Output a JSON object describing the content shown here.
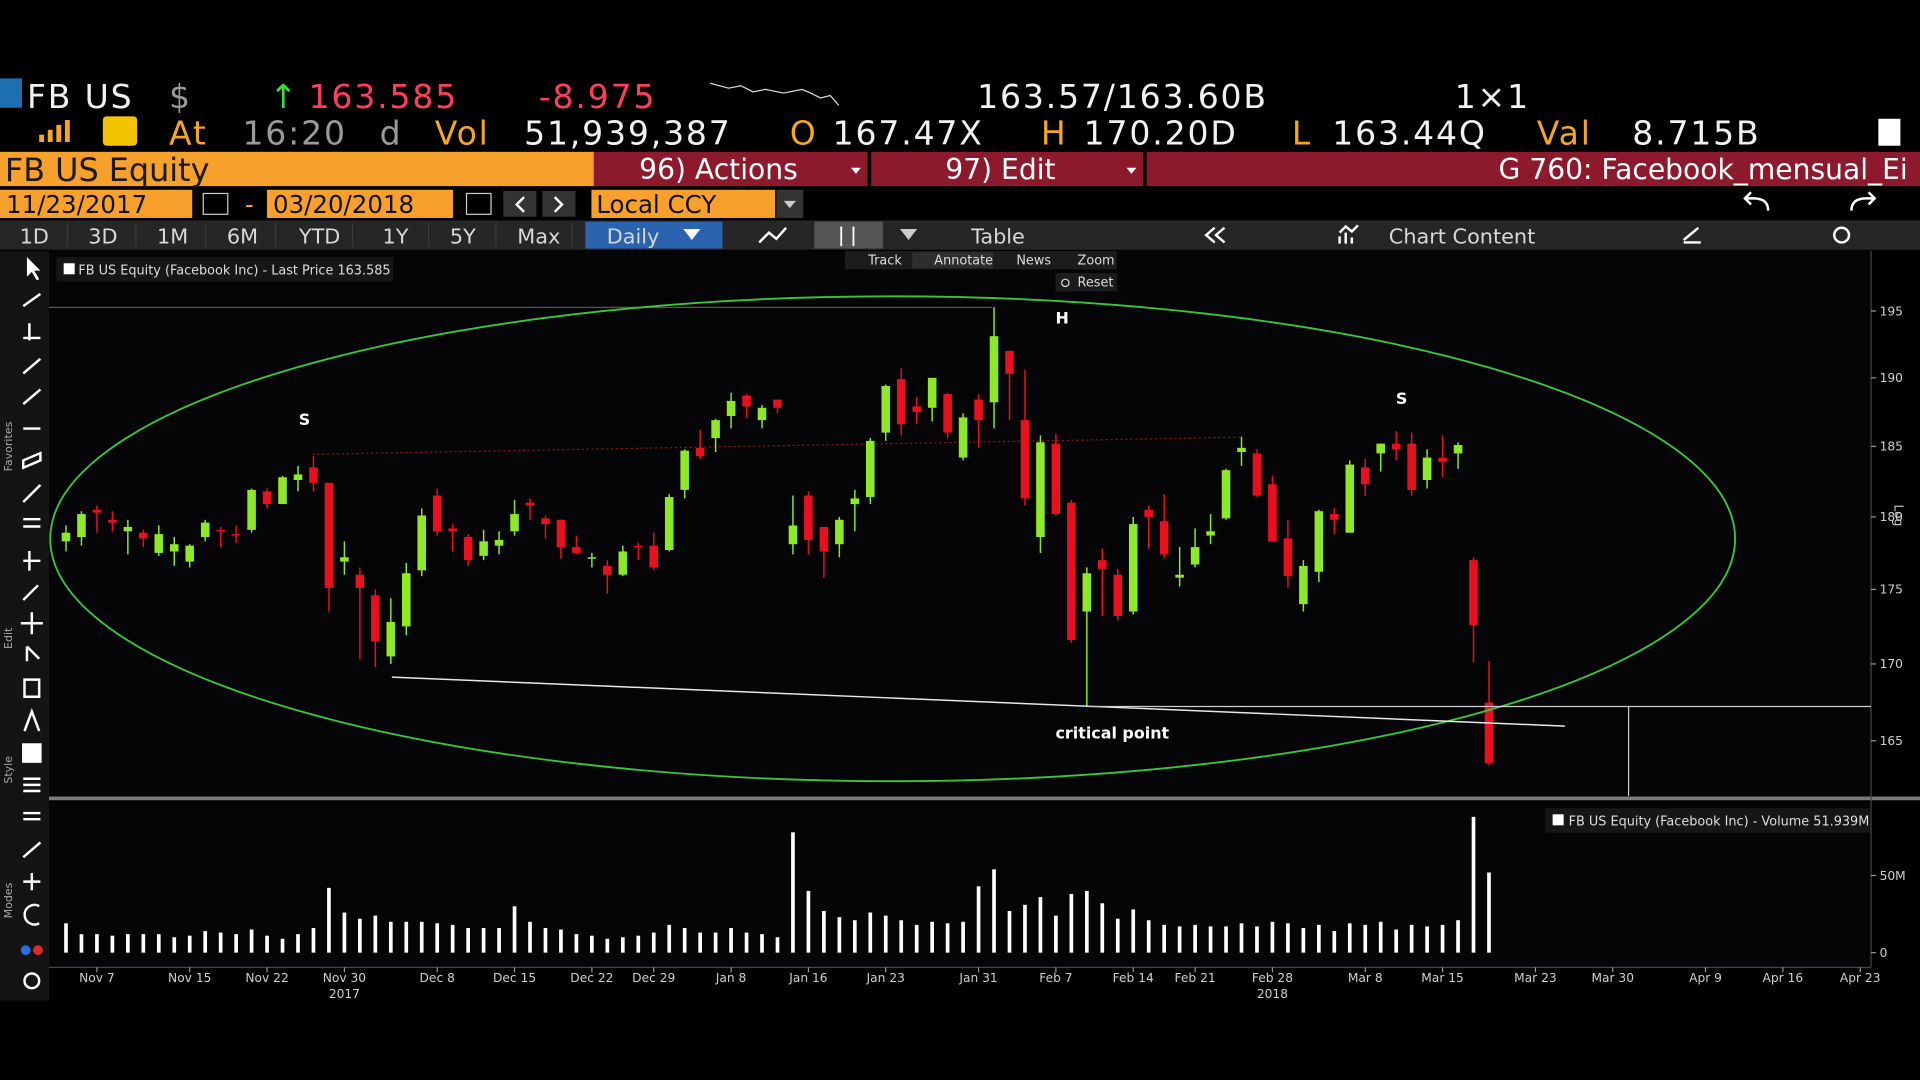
{
  "header": {
    "ticker": "FB US",
    "currency": "$",
    "arrow": "↑",
    "last": "163.585",
    "change": "-8.975",
    "bid_ask": "163.57/163.60B",
    "size": "1×1",
    "at": "At",
    "time": "16:20",
    "d": "d",
    "vol_label": "Vol",
    "volume": "51,939,387",
    "open_label": "O",
    "open": "167.47X",
    "high_label": "H",
    "high": "170.20D",
    "low_label": "L",
    "low": "163.44Q",
    "val_label": "Val",
    "value": "8.715B"
  },
  "menu": {
    "security": "FB US Equity",
    "actions": "96) Actions",
    "edit": "97) Edit",
    "chart_name": "G 760: Facebook_mensual_Ei"
  },
  "range": {
    "start": "11/23/2017",
    "separator": "-",
    "end": "03/20/2018",
    "currency": "Local CCY"
  },
  "tabs": [
    "1D",
    "3D",
    "1M",
    "6M",
    "YTD",
    "1Y",
    "5Y",
    "Max"
  ],
  "period": "Daily",
  "table": "Table",
  "chart_content": "Chart Content",
  "chart_tools": [
    "Track",
    "Annotate",
    "News",
    "Zoom"
  ],
  "reset": "Reset",
  "side_labels": [
    "Favorites",
    "Edit",
    "Style",
    "Modes"
  ],
  "annotations": [
    "S",
    "H",
    "S",
    "critical point"
  ],
  "chart_data": [
    {
      "type": "candlestick",
      "legend": "FB US Equity (Facebook Inc) - Last Price 163.585",
      "axis_label": "Log",
      "x": [
        0,
        1,
        2,
        3,
        4,
        5,
        6,
        7,
        8,
        9,
        10,
        11,
        12,
        13,
        14,
        15,
        16,
        17,
        18,
        19,
        20,
        21,
        22,
        23,
        24,
        25,
        26,
        27,
        28,
        29,
        30,
        31,
        32,
        33,
        34,
        35,
        36,
        37,
        38,
        39,
        40,
        41,
        42,
        43,
        44,
        45,
        46,
        47,
        48,
        49,
        50,
        51,
        52,
        53,
        54,
        55,
        56,
        57,
        58,
        59,
        60,
        61,
        62,
        63,
        64,
        65,
        66,
        67,
        68,
        69,
        70,
        71,
        72,
        73,
        74,
        75,
        76,
        77,
        78,
        79,
        80,
        81,
        82,
        83,
        84,
        85,
        86,
        87,
        88,
        89,
        90,
        91,
        92
      ],
      "open": [
        178.3,
        178.6,
        180.5,
        179.8,
        179.0,
        178.9,
        177.5,
        177.6,
        176.9,
        178.6,
        179.1,
        178.8,
        179.1,
        181.8,
        180.9,
        182.6,
        183.5,
        182.4,
        176.9,
        176.0,
        174.6,
        170.5,
        172.5,
        176.3,
        181.5,
        179.2,
        178.6,
        177.3,
        178.0,
        179.0,
        181.0,
        179.9,
        179.8,
        177.9,
        177.1,
        176.6,
        176.0,
        178.0,
        178.0,
        177.7,
        181.9,
        184.9,
        185.6,
        187.2,
        188.7,
        186.9,
        188.4,
        178.1,
        181.5,
        179.3,
        178.1,
        180.9,
        181.4,
        186.0,
        189.9,
        187.9,
        187.8,
        188.8,
        184.2,
        188.4,
        188.2,
        192.0,
        186.9,
        178.6,
        185.2,
        181.0,
        173.5,
        177.0,
        176.0,
        173.5,
        180.5,
        179.7,
        175.8,
        176.7,
        178.7,
        179.9,
        184.6,
        184.5,
        182.3,
        178.5,
        174.0,
        176.2,
        180.2,
        178.9,
        183.5,
        184.5,
        185.2,
        185.2,
        182.6,
        184.2,
        184.5,
        177.0,
        167.47
      ],
      "high": [
        179.4,
        180.4,
        180.8,
        180.4,
        179.8,
        179.1,
        179.4,
        178.6,
        178.1,
        179.8,
        179.3,
        179.4,
        182.0,
        182.0,
        182.9,
        183.6,
        184.3,
        182.4,
        178.3,
        176.5,
        175.0,
        174.4,
        176.8,
        180.6,
        182.0,
        179.5,
        178.8,
        179.1,
        179.0,
        181.2,
        181.3,
        180.1,
        179.8,
        178.7,
        177.5,
        177.0,
        178.0,
        178.2,
        178.9,
        181.6,
        184.8,
        186.2,
        187.0,
        188.9,
        188.8,
        188.0,
        188.4,
        181.5,
        181.8,
        179.3,
        180.0,
        181.9,
        185.6,
        189.5,
        190.7,
        188.6,
        190.0,
        188.9,
        187.4,
        188.8,
        195.3,
        192.0,
        190.6,
        185.8,
        185.9,
        181.2,
        176.5,
        177.8,
        176.4,
        180.0,
        180.8,
        181.6,
        177.9,
        179.2,
        180.2,
        183.4,
        185.7,
        184.8,
        182.9,
        179.8,
        177.0,
        180.5,
        180.6,
        184.0,
        184.1,
        185.2,
        186.1,
        186.0,
        184.8,
        185.8,
        185.3,
        177.2,
        170.2
      ],
      "low": [
        177.6,
        178.0,
        178.9,
        179.0,
        177.4,
        177.9,
        177.3,
        176.6,
        176.5,
        178.3,
        177.9,
        178.2,
        178.9,
        180.6,
        180.9,
        181.8,
        181.8,
        173.5,
        176.0,
        170.3,
        169.8,
        170.0,
        171.9,
        175.9,
        178.7,
        177.6,
        176.6,
        177.0,
        177.4,
        178.7,
        179.8,
        178.5,
        177.1,
        177.4,
        176.5,
        174.7,
        175.9,
        177.0,
        176.3,
        177.6,
        181.3,
        184.1,
        184.6,
        186.3,
        187.1,
        186.3,
        187.4,
        177.4,
        177.4,
        175.8,
        177.2,
        179.0,
        180.9,
        185.4,
        185.8,
        186.6,
        186.8,
        185.6,
        184.0,
        184.9,
        186.3,
        186.9,
        180.8,
        177.5,
        180.1,
        171.4,
        167.2,
        173.2,
        172.9,
        173.3,
        177.8,
        177.1,
        175.2,
        176.5,
        178.1,
        179.8,
        183.6,
        181.4,
        178.3,
        175.1,
        173.5,
        175.5,
        178.8,
        178.9,
        181.5,
        183.2,
        184.0,
        181.5,
        182.0,
        182.8,
        183.4,
        170.1,
        163.44
      ],
      "close": [
        178.9,
        180.2,
        180.3,
        179.6,
        179.3,
        178.5,
        178.8,
        178.1,
        178.0,
        179.6,
        179.0,
        178.7,
        181.9,
        180.9,
        182.8,
        183.0,
        182.4,
        175.1,
        177.2,
        175.1,
        171.5,
        172.8,
        176.1,
        180.1,
        179.0,
        179.0,
        177.0,
        178.3,
        178.4,
        180.2,
        180.8,
        179.5,
        177.9,
        177.5,
        177.2,
        176.0,
        177.6,
        177.9,
        176.5,
        181.4,
        184.7,
        184.3,
        186.9,
        188.3,
        187.9,
        187.8,
        187.8,
        179.4,
        178.4,
        177.6,
        179.8,
        181.3,
        185.4,
        189.4,
        186.6,
        187.5,
        190.0,
        186.0,
        187.1,
        186.9,
        193.1,
        190.3,
        181.3,
        185.3,
        180.2,
        171.6,
        176.1,
        176.4,
        173.2,
        179.5,
        180.0,
        177.4,
        176.0,
        177.9,
        179.0,
        183.3,
        184.9,
        181.5,
        178.3,
        175.9,
        176.6,
        180.4,
        179.8,
        183.7,
        182.3,
        185.2,
        184.8,
        181.9,
        184.2,
        183.9,
        185.1,
        172.6,
        163.585
      ],
      "up_color": "#8ee82a",
      "down_color": "#e8101e",
      "xlim": [
        -1.1,
        116.7
      ],
      "ylim": [
        161.5,
        199.6
      ],
      "log": true,
      "yticks": [
        165,
        170,
        175,
        180,
        185,
        190,
        195
      ]
    },
    {
      "type": "bar",
      "legend": "FB US Equity (Facebook Inc) - Volume 51.939M",
      "color": "#ffffff",
      "x": [
        0,
        1,
        2,
        3,
        4,
        5,
        6,
        7,
        8,
        9,
        10,
        11,
        12,
        13,
        14,
        15,
        16,
        17,
        18,
        19,
        20,
        21,
        22,
        23,
        24,
        25,
        26,
        27,
        28,
        29,
        30,
        31,
        32,
        33,
        34,
        35,
        36,
        37,
        38,
        39,
        40,
        41,
        42,
        43,
        44,
        45,
        46,
        47,
        48,
        49,
        50,
        51,
        52,
        53,
        54,
        55,
        56,
        57,
        58,
        59,
        60,
        61,
        62,
        63,
        64,
        65,
        66,
        67,
        68,
        69,
        70,
        71,
        72,
        73,
        74,
        75,
        76,
        77,
        78,
        79,
        80,
        81,
        82,
        83,
        84,
        85,
        86,
        87,
        88,
        89,
        90,
        91,
        92
      ],
      "values": [
        19,
        12,
        12,
        11,
        12,
        12,
        12,
        10,
        11,
        14,
        13,
        12,
        15,
        11,
        9,
        12,
        16,
        42,
        26,
        22,
        24,
        20,
        20,
        20,
        19,
        18,
        16,
        16,
        16,
        30,
        20,
        16,
        15,
        12,
        11,
        9,
        10,
        11,
        13,
        18,
        16,
        13,
        13,
        16,
        13,
        12,
        10,
        78,
        40,
        27,
        23,
        21,
        26,
        24,
        21,
        18,
        20,
        19,
        20,
        43,
        54,
        27,
        31,
        36,
        24,
        38,
        40,
        32,
        22,
        28,
        21,
        18,
        17,
        18,
        17,
        17,
        19,
        17,
        20,
        19,
        16,
        18,
        14,
        19,
        18,
        20,
        15,
        18,
        17,
        18,
        21,
        88,
        51.939
      ],
      "xlim": [
        -1.1,
        116.7
      ],
      "ylim": [
        0,
        97.6
      ],
      "yticks": [
        0,
        {
          "value": 50,
          "label": "50M"
        }
      ],
      "xticks": [
        {
          "value": 2,
          "label": "Nov 7"
        },
        {
          "value": 8,
          "label": "Nov 15"
        },
        {
          "value": 13,
          "label": "Nov 22"
        },
        {
          "value": 18,
          "label": "Nov 30"
        },
        {
          "value": 24,
          "label": "Dec 8"
        },
        {
          "value": 29,
          "label": "Dec 15"
        },
        {
          "value": 34,
          "label": "Dec 22"
        },
        {
          "value": 38,
          "label": "Dec 29"
        },
        {
          "value": 43,
          "label": "Jan 8"
        },
        {
          "value": 48,
          "label": "Jan 16"
        },
        {
          "value": 53,
          "label": "Jan 23"
        },
        {
          "value": 59,
          "label": "Jan 31"
        },
        {
          "value": 64,
          "label": "Feb 7"
        },
        {
          "value": 69,
          "label": "Feb 14"
        },
        {
          "value": 73,
          "label": "Feb 21"
        },
        {
          "value": 78,
          "label": "Feb 28"
        },
        {
          "value": 84,
          "label": "Mar 8"
        },
        {
          "value": 89,
          "label": "Mar 15"
        },
        {
          "value": 95,
          "label": "Mar 23"
        },
        {
          "value": 100,
          "label": "Mar 30"
        },
        {
          "value": 106,
          "label": "Apr 9"
        },
        {
          "value": 111,
          "label": "Apr 16"
        },
        {
          "value": 116,
          "label": "Apr 23"
        }
      ],
      "year_ticks": [
        {
          "value": 18,
          "label": "2017"
        },
        {
          "value": 78,
          "label": "2018"
        }
      ]
    }
  ]
}
